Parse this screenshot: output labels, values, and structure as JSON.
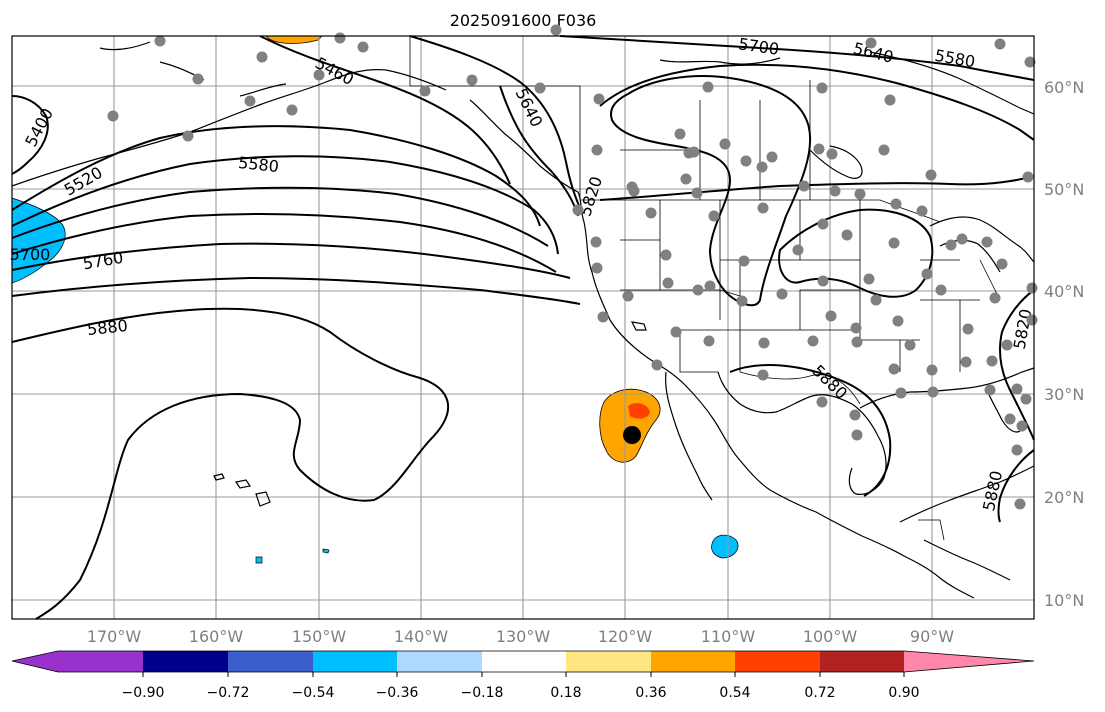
{
  "title": "2025091600 F036",
  "lat_labels": [
    "60°N",
    "50°N",
    "40°N",
    "30°N",
    "20°N",
    "10°N"
  ],
  "lon_labels": [
    "170°W",
    "160°W",
    "150°W",
    "140°W",
    "130°W",
    "120°W",
    "110°W",
    "100°W",
    "90°W"
  ],
  "contour_labels": {
    "c5400": "5400",
    "c5460": "5460",
    "c5520": "5520",
    "c5580a": "5580",
    "c5580b": "5580",
    "c5640a": "5640",
    "c5640b": "5640",
    "c5700a": "5700",
    "c5700b": "5700",
    "c5760": "5760",
    "c5820a": "5820",
    "c5820b": "5820",
    "c5880a": "5880",
    "c5880b": "5880",
    "c5880c": "5880"
  },
  "colorbar": {
    "ticks": [
      "−0.90",
      "−0.72",
      "−0.54",
      "−0.36",
      "−0.18",
      "0.18",
      "0.36",
      "0.54",
      "0.72",
      "0.90"
    ],
    "colors": [
      "#9932cc",
      "#00008b",
      "#3a5fcd",
      "#00bfff",
      "#add8ff",
      "#ffffff",
      "#ffe680",
      "#ffa500",
      "#ff4000",
      "#b22222",
      "#ff88aa"
    ]
  },
  "colors": {
    "anomaly_cyan": "#00bfff",
    "anomaly_orange": "#ffa500",
    "anomaly_red": "#ff4000",
    "station_gray": "#808080",
    "marker_black": "#000000"
  }
}
